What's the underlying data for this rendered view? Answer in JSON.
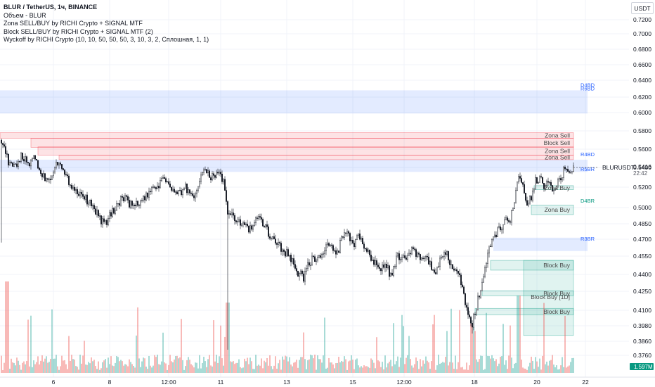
{
  "legend": {
    "title": "BLUR / TetherUS, 1ч, BINANCE",
    "lines": [
      "Объем - BLUR",
      "Zona SELL/BUY by RICHI Crypto + SIGNAL MTF",
      "Block SELL/BUY by RICHI Crypto + SIGNAL MTF (2)",
      "Wyckoff by RICHI Crypto  (10, 10, 50, 50, 50, 3, 10, 3, 2, Сплошная, 1, 1)"
    ]
  },
  "currency_button": "USDT",
  "price_tag": {
    "symbol": "BLURUSDT",
    "price": "0.5416",
    "countdown": "22:42"
  },
  "volume_tag": "1.597M",
  "colors": {
    "up": "#ffffff",
    "down": "#131722",
    "wick": "#131722",
    "sell_zone": "#f23645",
    "buy_zone": "#089981",
    "level_blue": "#2962ff",
    "vol_up": "#26a69a",
    "vol_down": "#ef5350",
    "volume_tag_bg": "#089981"
  },
  "chart_data": {
    "type": "candlestick",
    "y_ticks": [
      "0.7200",
      "0.7000",
      "0.6800",
      "0.6600",
      "0.6400",
      "0.6200",
      "0.6000",
      "0.5800",
      "0.5600",
      "0.5400",
      "0.5200",
      "0.5000",
      "0.4850",
      "0.4700",
      "0.4550",
      "0.4400",
      "0.4250",
      "0.4100",
      "0.3980",
      "0.3860",
      "0.3760"
    ],
    "x_ticks": [
      "6",
      "8",
      "12:00",
      "11",
      "13",
      "15",
      "12:00",
      "18",
      "20",
      "22"
    ],
    "close_path": [
      [
        0,
        0.574
      ],
      [
        6,
        0.562
      ],
      [
        12,
        0.545
      ],
      [
        18,
        0.54
      ],
      [
        24,
        0.544
      ],
      [
        30,
        0.552
      ],
      [
        36,
        0.548
      ],
      [
        42,
        0.542
      ],
      [
        48,
        0.556
      ],
      [
        54,
        0.54
      ],
      [
        60,
        0.533
      ],
      [
        66,
        0.528
      ],
      [
        72,
        0.53
      ],
      [
        78,
        0.542
      ],
      [
        84,
        0.548
      ],
      [
        90,
        0.535
      ],
      [
        96,
        0.528
      ],
      [
        102,
        0.522
      ],
      [
        108,
        0.516
      ],
      [
        114,
        0.515
      ],
      [
        120,
        0.51
      ],
      [
        126,
        0.506
      ],
      [
        132,
        0.5
      ],
      [
        138,
        0.495
      ],
      [
        144,
        0.488
      ],
      [
        150,
        0.485
      ],
      [
        156,
        0.492
      ],
      [
        162,
        0.498
      ],
      [
        168,
        0.504
      ],
      [
        174,
        0.51
      ],
      [
        180,
        0.507
      ],
      [
        186,
        0.503
      ],
      [
        192,
        0.501
      ],
      [
        198,
        0.505
      ],
      [
        204,
        0.508
      ],
      [
        210,
        0.512
      ],
      [
        216,
        0.516
      ],
      [
        222,
        0.52
      ],
      [
        228,
        0.524
      ],
      [
        234,
        0.53
      ],
      [
        240,
        0.522
      ],
      [
        246,
        0.516
      ],
      [
        252,
        0.512
      ],
      [
        258,
        0.515
      ],
      [
        264,
        0.52
      ],
      [
        270,
        0.515
      ],
      [
        276,
        0.51
      ],
      [
        282,
        0.522
      ],
      [
        288,
        0.537
      ],
      [
        294,
        0.534
      ],
      [
        300,
        0.53
      ],
      [
        306,
        0.532
      ],
      [
        312,
        0.536
      ],
      [
        318,
        0.525
      ],
      [
        324,
        0.493
      ],
      [
        330,
        0.492
      ],
      [
        336,
        0.488
      ],
      [
        342,
        0.485
      ],
      [
        348,
        0.486
      ],
      [
        354,
        0.478
      ],
      [
        360,
        0.484
      ],
      [
        366,
        0.49
      ],
      [
        372,
        0.486
      ],
      [
        378,
        0.481
      ],
      [
        384,
        0.474
      ],
      [
        390,
        0.47
      ],
      [
        396,
        0.466
      ],
      [
        402,
        0.46
      ],
      [
        408,
        0.458
      ],
      [
        414,
        0.452
      ],
      [
        420,
        0.446
      ],
      [
        426,
        0.44
      ],
      [
        432,
        0.437
      ],
      [
        438,
        0.448
      ],
      [
        444,
        0.453
      ],
      [
        450,
        0.45
      ],
      [
        456,
        0.456
      ],
      [
        462,
        0.46
      ],
      [
        468,
        0.465
      ],
      [
        474,
        0.46
      ],
      [
        480,
        0.458
      ],
      [
        486,
        0.47
      ],
      [
        492,
        0.476
      ],
      [
        498,
        0.47
      ],
      [
        504,
        0.465
      ],
      [
        510,
        0.472
      ],
      [
        516,
        0.466
      ],
      [
        522,
        0.46
      ],
      [
        528,
        0.455
      ],
      [
        534,
        0.45
      ],
      [
        540,
        0.446
      ],
      [
        546,
        0.447
      ],
      [
        552,
        0.444
      ],
      [
        558,
        0.438
      ],
      [
        564,
        0.452
      ],
      [
        570,
        0.456
      ],
      [
        576,
        0.454
      ],
      [
        582,
        0.458
      ],
      [
        588,
        0.46
      ],
      [
        594,
        0.455
      ],
      [
        600,
        0.452
      ],
      [
        606,
        0.456
      ],
      [
        612,
        0.448
      ],
      [
        618,
        0.442
      ],
      [
        624,
        0.448
      ],
      [
        630,
        0.453
      ],
      [
        636,
        0.457
      ],
      [
        642,
        0.446
      ],
      [
        648,
        0.444
      ],
      [
        654,
        0.436
      ],
      [
        660,
        0.421
      ],
      [
        666,
        0.406
      ],
      [
        672,
        0.4
      ],
      [
        678,
        0.412
      ],
      [
        684,
        0.428
      ],
      [
        690,
        0.445
      ],
      [
        696,
        0.46
      ],
      [
        702,
        0.47
      ],
      [
        708,
        0.478
      ],
      [
        714,
        0.482
      ],
      [
        720,
        0.488
      ],
      [
        726,
        0.49
      ],
      [
        732,
        0.505
      ],
      [
        738,
        0.53
      ],
      [
        744,
        0.52
      ],
      [
        750,
        0.503
      ],
      [
        756,
        0.51
      ],
      [
        762,
        0.526
      ],
      [
        768,
        0.53
      ],
      [
        774,
        0.522
      ],
      [
        780,
        0.528
      ],
      [
        786,
        0.52
      ],
      [
        792,
        0.522
      ],
      [
        798,
        0.53
      ],
      [
        804,
        0.54
      ],
      [
        810,
        0.534
      ],
      [
        816,
        0.5416
      ]
    ],
    "zones": [
      {
        "label": "Zona Sell",
        "x0": 0,
        "x1": 816,
        "y0": 0.578,
        "y1": 0.572,
        "kind": "sell"
      },
      {
        "label": "Block Sell",
        "x0": 44,
        "x1": 816,
        "y0": 0.572,
        "y1": 0.562,
        "kind": "sell"
      },
      {
        "label": "Zona Sell",
        "x0": 54,
        "x1": 816,
        "y0": 0.5625,
        "y1": 0.5535,
        "kind": "sell"
      },
      {
        "label": "Zona Sell",
        "x0": 84,
        "x1": 816,
        "y0": 0.5535,
        "y1": 0.5485,
        "kind": "sell"
      },
      {
        "label": "Zona Buy",
        "x0": 760,
        "x1": 816,
        "y0": 0.5215,
        "y1": 0.5175,
        "kind": "buy"
      },
      {
        "label": "Zona Buy",
        "x0": 756,
        "x1": 816,
        "y0": 0.5025,
        "y1": 0.4935,
        "kind": "buy"
      },
      {
        "label": "Block Buy",
        "x0": 698,
        "x1": 816,
        "y0": 0.4515,
        "y1": 0.4435,
        "kind": "buy"
      },
      {
        "label": "Block Buy",
        "x0": 745,
        "x1": 816,
        "y0": 0.4515,
        "y1": 0.3905,
        "kind": "buy_tint"
      },
      {
        "label": "Block Buy",
        "x0": 686,
        "x1": 816,
        "y0": 0.4255,
        "y1": 0.4215,
        "kind": "buy"
      },
      {
        "label": "Block Buy [1D]",
        "x0": 745,
        "x1": 816,
        "y0": 0.4235,
        "y1": 0.4175,
        "kind": "buy_label"
      },
      {
        "label": "Block Buy",
        "x0": 676,
        "x1": 816,
        "y0": 0.4115,
        "y1": 0.4065,
        "kind": "buy"
      }
    ],
    "blue_bands": [
      {
        "label": "D4BD",
        "alt": "R6BD",
        "x0": 0,
        "x1": 836,
        "y0": 0.628,
        "y1": 0.599
      },
      {
        "label": "R5BR",
        "x0": 0,
        "x1": 836,
        "y0": 0.5485,
        "y1": 0.5355
      },
      {
        "label": "R3BR",
        "x0": 702,
        "x1": 836,
        "y0": 0.4715,
        "y1": 0.4595
      }
    ],
    "level_labels": [
      {
        "text": "D4BD",
        "x": 826,
        "y": 0.6346,
        "color": "#2962ff"
      },
      {
        "text": "R6BD",
        "x": 826,
        "y": 0.6305,
        "color": "#2962ff"
      },
      {
        "text": "R4BD",
        "x": 826,
        "y": 0.5545,
        "color": "#2962ff"
      },
      {
        "text": "R5BR",
        "x": 826,
        "y": 0.5385,
        "color": "#2962ff"
      },
      {
        "text": "D4BR",
        "x": 826,
        "y": 0.5068,
        "color": "#089981"
      },
      {
        "text": "R3BR",
        "x": 826,
        "y": 0.4708,
        "color": "#2962ff"
      }
    ]
  }
}
